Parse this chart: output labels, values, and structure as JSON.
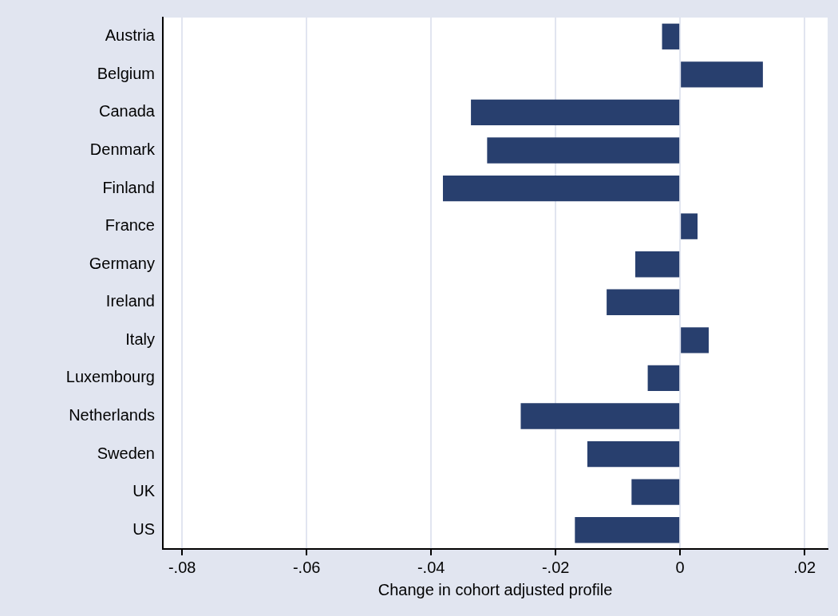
{
  "chart_data": {
    "type": "bar",
    "orientation": "horizontal",
    "xlabel": "Change in cohort adjusted profile",
    "categories": [
      "Austria",
      "Belgium",
      "Canada",
      "Denmark",
      "Finland",
      "France",
      "Germany",
      "Ireland",
      "Italy",
      "Luxembourg",
      "Netherlands",
      "Sweden",
      "UK",
      "US"
    ],
    "values": [
      -0.0029,
      0.0133,
      -0.0336,
      -0.031,
      -0.0381,
      0.0028,
      -0.0072,
      -0.0118,
      0.0046,
      -0.0052,
      -0.0256,
      -0.0149,
      -0.0078,
      -0.0169
    ],
    "color": "#283f6e",
    "xlim": [
      -0.0831,
      0.0237
    ],
    "xticks": [
      {
        "value": -0.08,
        "label": "-.08"
      },
      {
        "value": -0.06,
        "label": "-.06"
      },
      {
        "value": -0.04,
        "label": "-.04"
      },
      {
        "value": -0.02,
        "label": "-.02"
      },
      0,
      {
        "value": 0.02,
        "label": ".02"
      }
    ],
    "grid": "x",
    "legend": false
  }
}
